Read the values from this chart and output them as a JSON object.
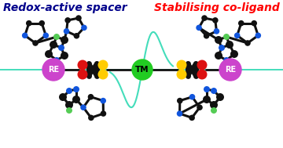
{
  "title_left": "Redox-active spacer",
  "title_right": "Stabilising co-ligand",
  "title_left_color": "#00008B",
  "title_right_color": "#FF0000",
  "title_fontsize": 10,
  "bg_color": "#FFFFFF",
  "tm_color": "#22CC22",
  "tm_label": "TM",
  "re_color": "#CC44CC",
  "re_label": "RE",
  "yellow_color": "#FFCC00",
  "red_color": "#DD1111",
  "black_color": "#111111",
  "blue_color": "#1155DD",
  "green_atom_color": "#55CC55",
  "cyan_color": "#44DDBB",
  "figw": 3.6,
  "figh": 1.89,
  "dpi": 100
}
